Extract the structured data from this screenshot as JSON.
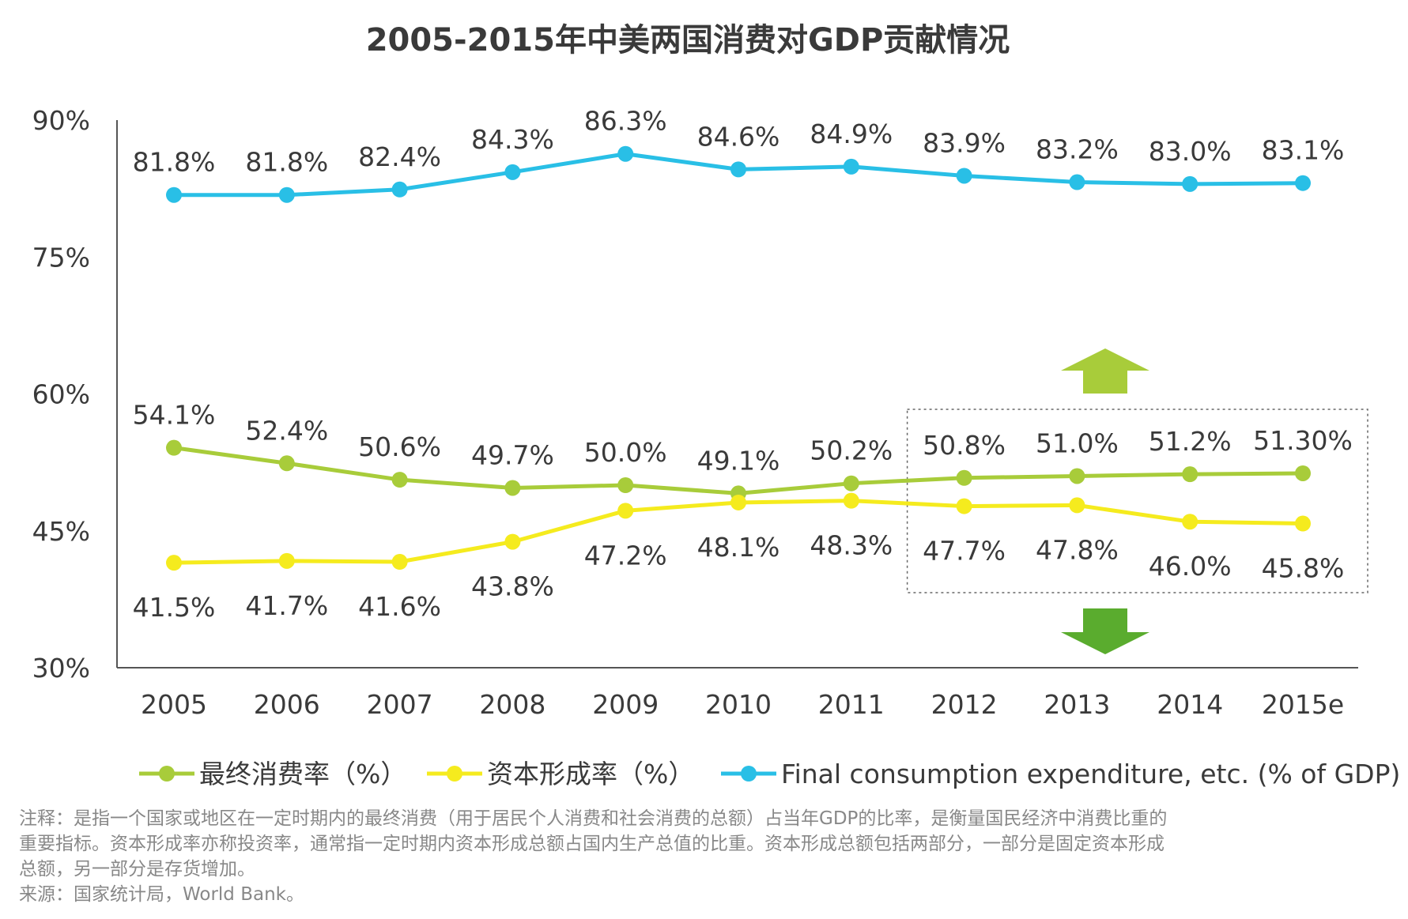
{
  "chart_data": {
    "type": "line",
    "title": "2005-2015年中美两国消费对GDP贡献情况",
    "categories": [
      "2005",
      "2006",
      "2007",
      "2008",
      "2009",
      "2010",
      "2011",
      "2012",
      "2013",
      "2014",
      "2015e"
    ],
    "ylim": [
      30,
      90
    ],
    "yticks": [
      30,
      45,
      60,
      75,
      90
    ],
    "ytick_labels": [
      "30%",
      "45%",
      "60%",
      "75%",
      "90%"
    ],
    "xlabel": "",
    "ylabel": "",
    "grid": false,
    "legend_position": "bottom",
    "series": [
      {
        "name": "最终消费率（%）",
        "color": "#a8cc3a",
        "values": [
          54.1,
          52.4,
          50.6,
          49.7,
          50.0,
          49.1,
          50.2,
          50.8,
          51.0,
          51.2,
          51.3
        ],
        "labels": [
          "54.1%",
          "52.4%",
          "50.6%",
          "49.7%",
          "50.0%",
          "49.1%",
          "50.2%",
          "50.8%",
          "51.0%",
          "51.2%",
          "51.30%"
        ],
        "label_position": "above"
      },
      {
        "name": "资本形成率（%）",
        "color": "#f5eb1e",
        "values": [
          41.5,
          41.7,
          41.6,
          43.8,
          47.2,
          48.1,
          48.3,
          47.7,
          47.8,
          46.0,
          45.8
        ],
        "labels": [
          "41.5%",
          "41.7%",
          "41.6%",
          "43.8%",
          "47.2%",
          "48.1%",
          "48.3%",
          "47.7%",
          "47.8%",
          "46.0%",
          "45.8%"
        ],
        "label_position": "below"
      },
      {
        "name": "Final consumption expenditure, etc. (% of GDP)",
        "color": "#29bfe6",
        "values": [
          81.8,
          81.8,
          82.4,
          84.3,
          86.3,
          84.6,
          84.9,
          83.9,
          83.2,
          83.0,
          83.1
        ],
        "labels": [
          "81.8%",
          "81.8%",
          "82.4%",
          "84.3%",
          "86.3%",
          "84.6%",
          "84.9%",
          "83.9%",
          "83.2%",
          "83.0%",
          "83.1%"
        ],
        "label_position": "above"
      }
    ],
    "annotations": {
      "highlight_box": {
        "from_category": "2012",
        "to_category": "2015e",
        "style": "dotted"
      },
      "up_arrow": {
        "color": "#a8cc3a",
        "meaning": "up"
      },
      "down_arrow": {
        "color": "#5aac2e",
        "meaning": "down"
      }
    }
  },
  "notes": {
    "note_lines": [
      "注释：是指一个国家或地区在一定时期内的最终消费（用于居民个人消费和社会消费的总额）占当年GDP的比率，是衡量国民经济中消费比重的",
      "重要指标。资本形成率亦称投资率，通常指一定时期内资本形成总额占国内生产总值的比重。资本形成总额包括两部分，一部分是固定资本形成",
      "总额，另一部分是存货增加。"
    ],
    "source": "来源：国家统计局，World Bank。"
  },
  "colors": {
    "axis": "#555555",
    "text": "#3a3a3a",
    "note_text": "#888888",
    "box_border": "#666666"
  }
}
